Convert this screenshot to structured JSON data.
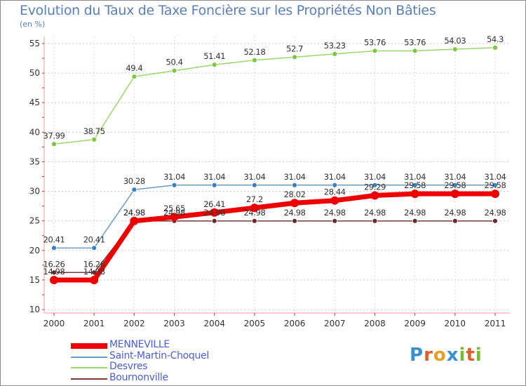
{
  "title": "Evolution du Taux de Taxe Foncière sur les Propriétés Non Bâties",
  "unit_label": "(en %)",
  "logo": {
    "letters": [
      "P",
      "r",
      "o",
      "x",
      "i",
      "t",
      "i"
    ],
    "colors": [
      "#3a8fd0",
      "#e0602a",
      "#e8a020",
      "#3a8fd0",
      "#7ab83a",
      "#e0602a",
      "#7ab83a"
    ]
  },
  "chart_data": {
    "type": "line",
    "title": "Evolution du Taux de Taxe Foncière sur les Propriétés Non Bâties",
    "ylabel": "(en %)",
    "xlabel": "",
    "x": [
      "2000",
      "2001",
      "2002",
      "2003",
      "2004",
      "2005",
      "2006",
      "2007",
      "2008",
      "2009",
      "2010",
      "2011"
    ],
    "ylim": [
      10,
      55
    ],
    "yticks": [
      "10",
      "15",
      "20",
      "25",
      "30",
      "35",
      "40",
      "45",
      "50",
      "55"
    ],
    "grid": true,
    "legend_position": "bottom-left",
    "series": [
      {
        "name": "Bournonville",
        "color": "#7a3a3a",
        "marker": "#6a2a2a",
        "values": [
          16.26,
          16.26,
          24.98,
          24.98,
          24.98,
          24.98,
          24.98,
          24.98,
          24.98,
          24.98,
          24.98,
          24.98
        ],
        "labels": [
          "16.26",
          "16.26",
          "24.98",
          "24.98",
          "24.98",
          "24.98",
          "24.98",
          "24.98",
          "24.98",
          "24.98",
          "24.98",
          "24.98"
        ]
      },
      {
        "name": "Saint-Martin-Choquel",
        "color": "#6a9cc8",
        "marker": "#3a80c0",
        "values": [
          20.41,
          20.41,
          30.28,
          31.04,
          31.04,
          31.04,
          31.04,
          31.04,
          31.04,
          31.04,
          31.04,
          31.04
        ],
        "labels": [
          "20.41",
          "20.41",
          "30.28",
          "31.04",
          "31.04",
          "31.04",
          "31.04",
          "31.04",
          "31.04",
          "31.04",
          "31.04",
          "31.04"
        ]
      },
      {
        "name": "Desvres",
        "color": "#9ad86a",
        "marker": "#7ac840",
        "values": [
          37.99,
          38.75,
          49.4,
          50.4,
          51.41,
          52.18,
          52.7,
          53.23,
          53.76,
          53.76,
          54.03,
          54.3
        ],
        "labels": [
          "37.99",
          "38.75",
          "49.4",
          "50.4",
          "51.41",
          "52.18",
          "52.7",
          "53.23",
          "53.76",
          "53.76",
          "54.03",
          "54.3"
        ]
      },
      {
        "name": "MENNEVILLE",
        "color": "#ee0000",
        "marker": "#ee0000",
        "values": [
          14.98,
          14.98,
          24.98,
          25.65,
          26.41,
          27.2,
          28.02,
          28.44,
          29.29,
          29.58,
          29.58,
          29.58
        ],
        "labels": [
          "14.98",
          "14.98",
          "24.98",
          "25.65",
          "26.41",
          "27.2",
          "28.02",
          "28.44",
          "29.29",
          "29.58",
          "29.58",
          "29.58"
        ]
      }
    ],
    "legend": [
      {
        "name": "MENNEVILLE",
        "color": "#ee0000",
        "weight": "thick"
      },
      {
        "name": "Saint-Martin-Choquel",
        "color": "#6a9cc8",
        "weight": "thin"
      },
      {
        "name": "Desvres",
        "color": "#9ad86a",
        "weight": "thin"
      },
      {
        "name": "Bournonville",
        "color": "#7a3a3a",
        "weight": "thin"
      }
    ]
  }
}
